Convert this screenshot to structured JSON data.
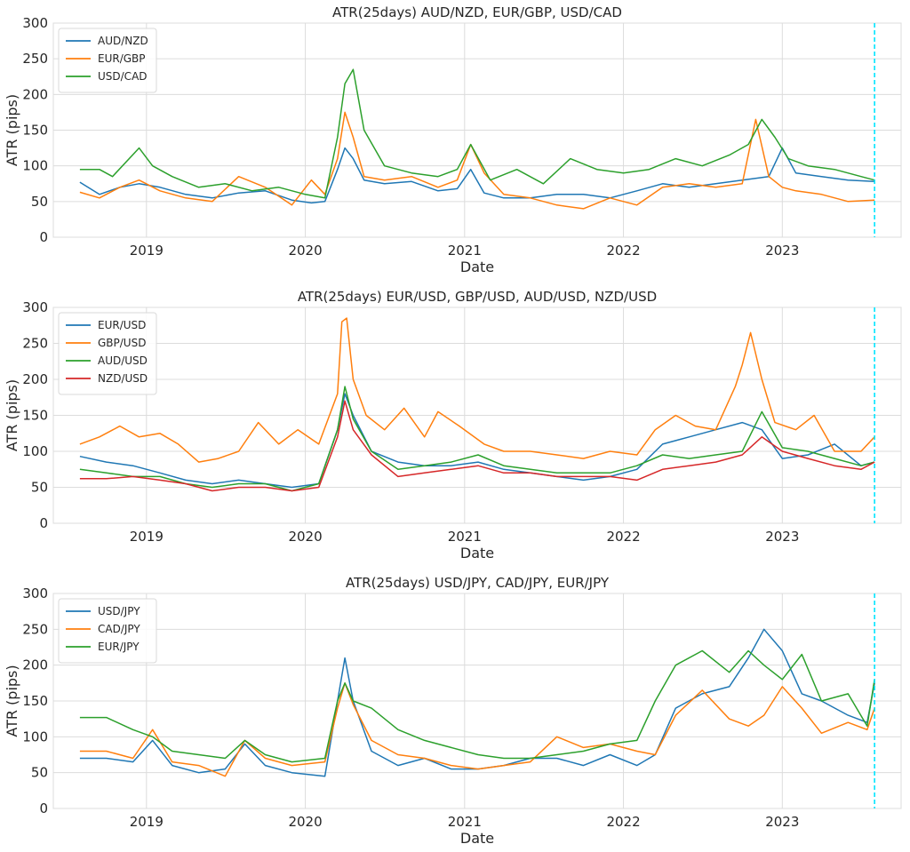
{
  "figure": {
    "vline_date": "2023-08-01",
    "vline_color": "#00e5ff"
  },
  "chart_data": [
    {
      "type": "line",
      "title": "ATR(25days)  AUD/NZD, EUR/GBP, USD/CAD",
      "xlabel": "Date",
      "ylabel": "ATR (pips)",
      "ylim": [
        0,
        300
      ],
      "yticks": [
        "0",
        "50",
        "100",
        "150",
        "200",
        "250",
        "300"
      ],
      "xticks": [
        "2019",
        "2020",
        "2021",
        "2022",
        "2023"
      ],
      "xlim": [
        "2018-06-01",
        "2023-10-01"
      ],
      "grid": true,
      "legend_position": "top-left",
      "series": [
        {
          "name": "AUD/NZD",
          "color": "#1f77b4",
          "x": [
            "2018-08-01",
            "2018-09-15",
            "2018-11-01",
            "2018-12-15",
            "2019-02-01",
            "2019-04-01",
            "2019-06-01",
            "2019-08-01",
            "2019-10-01",
            "2019-12-01",
            "2020-01-15",
            "2020-02-15",
            "2020-03-15",
            "2020-04-01",
            "2020-04-20",
            "2020-05-15",
            "2020-07-01",
            "2020-09-01",
            "2020-11-01",
            "2020-12-15",
            "2021-01-15",
            "2021-02-15",
            "2021-04-01",
            "2021-06-01",
            "2021-08-01",
            "2021-10-01",
            "2021-12-01",
            "2022-02-01",
            "2022-04-01",
            "2022-06-01",
            "2022-08-01",
            "2022-10-01",
            "2022-12-01",
            "2023-01-01",
            "2023-02-01",
            "2023-04-01",
            "2023-06-01",
            "2023-08-01"
          ],
          "values": [
            77,
            60,
            70,
            75,
            70,
            60,
            55,
            62,
            65,
            52,
            48,
            50,
            95,
            125,
            110,
            80,
            75,
            78,
            65,
            68,
            95,
            62,
            55,
            55,
            60,
            60,
            55,
            65,
            75,
            70,
            75,
            80,
            85,
            125,
            90,
            85,
            80,
            78
          ]
        },
        {
          "name": "EUR/GBP",
          "color": "#ff7f0e",
          "x": [
            "2018-08-01",
            "2018-09-15",
            "2018-11-01",
            "2018-12-15",
            "2019-02-01",
            "2019-04-01",
            "2019-06-01",
            "2019-08-01",
            "2019-10-01",
            "2019-12-01",
            "2020-01-15",
            "2020-02-15",
            "2020-03-15",
            "2020-04-01",
            "2020-04-20",
            "2020-05-15",
            "2020-07-01",
            "2020-09-01",
            "2020-11-01",
            "2020-12-15",
            "2021-01-15",
            "2021-02-15",
            "2021-04-01",
            "2021-06-01",
            "2021-08-01",
            "2021-10-01",
            "2021-12-01",
            "2022-02-01",
            "2022-04-01",
            "2022-06-01",
            "2022-08-01",
            "2022-10-01",
            "2022-11-01",
            "2022-12-01",
            "2023-01-01",
            "2023-02-01",
            "2023-04-01",
            "2023-06-01",
            "2023-08-01"
          ],
          "values": [
            63,
            55,
            70,
            80,
            65,
            55,
            50,
            85,
            70,
            45,
            80,
            60,
            110,
            175,
            140,
            85,
            80,
            85,
            70,
            80,
            130,
            90,
            60,
            55,
            45,
            40,
            55,
            45,
            70,
            75,
            70,
            75,
            165,
            85,
            70,
            65,
            60,
            50,
            52
          ]
        },
        {
          "name": "USD/CAD",
          "color": "#2ca02c",
          "x": [
            "2018-08-01",
            "2018-09-15",
            "2018-10-15",
            "2018-12-15",
            "2019-01-15",
            "2019-03-01",
            "2019-05-01",
            "2019-07-01",
            "2019-09-01",
            "2019-11-01",
            "2020-01-01",
            "2020-02-15",
            "2020-03-15",
            "2020-04-01",
            "2020-04-20",
            "2020-05-15",
            "2020-07-01",
            "2020-09-01",
            "2020-11-01",
            "2020-12-15",
            "2021-01-15",
            "2021-03-01",
            "2021-05-01",
            "2021-07-01",
            "2021-09-01",
            "2021-11-01",
            "2022-01-01",
            "2022-03-01",
            "2022-05-01",
            "2022-07-01",
            "2022-09-01",
            "2022-10-15",
            "2022-11-15",
            "2022-12-15",
            "2023-01-15",
            "2023-03-01",
            "2023-05-01",
            "2023-07-01",
            "2023-08-01"
          ],
          "values": [
            95,
            95,
            85,
            125,
            100,
            85,
            70,
            75,
            65,
            70,
            60,
            55,
            140,
            215,
            235,
            150,
            100,
            90,
            85,
            95,
            130,
            80,
            95,
            75,
            110,
            95,
            90,
            95,
            110,
            100,
            115,
            130,
            165,
            140,
            110,
            100,
            95,
            85,
            80
          ]
        }
      ]
    },
    {
      "type": "line",
      "title": "ATR(25days) EUR/USD, GBP/USD, AUD/USD, NZD/USD",
      "xlabel": "Date",
      "ylabel": "ATR (pips)",
      "ylim": [
        0,
        300
      ],
      "yticks": [
        "0",
        "50",
        "100",
        "150",
        "200",
        "250",
        "300"
      ],
      "xticks": [
        "2019",
        "2020",
        "2021",
        "2022",
        "2023"
      ],
      "xlim": [
        "2018-06-01",
        "2023-10-01"
      ],
      "grid": true,
      "legend_position": "top-left",
      "series": [
        {
          "name": "EUR/USD",
          "color": "#1f77b4",
          "x": [
            "2018-08-01",
            "2018-10-01",
            "2018-12-01",
            "2019-02-01",
            "2019-04-01",
            "2019-06-01",
            "2019-08-01",
            "2019-10-01",
            "2019-12-01",
            "2020-02-01",
            "2020-03-15",
            "2020-04-01",
            "2020-04-20",
            "2020-06-01",
            "2020-08-01",
            "2020-10-01",
            "2020-12-01",
            "2021-02-01",
            "2021-04-01",
            "2021-06-01",
            "2021-08-01",
            "2021-10-01",
            "2021-12-01",
            "2022-02-01",
            "2022-04-01",
            "2022-06-01",
            "2022-08-01",
            "2022-10-01",
            "2022-11-15",
            "2023-01-01",
            "2023-03-01",
            "2023-05-01",
            "2023-07-01",
            "2023-08-01"
          ],
          "values": [
            93,
            85,
            80,
            70,
            60,
            55,
            60,
            55,
            50,
            55,
            130,
            180,
            150,
            100,
            85,
            80,
            80,
            85,
            75,
            70,
            65,
            60,
            65,
            75,
            110,
            120,
            130,
            140,
            130,
            90,
            95,
            110,
            80,
            85
          ]
        },
        {
          "name": "GBP/USD",
          "color": "#ff7f0e",
          "x": [
            "2018-08-01",
            "2018-09-15",
            "2018-11-01",
            "2018-12-15",
            "2019-02-01",
            "2019-03-15",
            "2019-05-01",
            "2019-06-15",
            "2019-08-01",
            "2019-09-15",
            "2019-11-01",
            "2019-12-15",
            "2020-02-01",
            "2020-03-15",
            "2020-03-25",
            "2020-04-05",
            "2020-04-20",
            "2020-05-20",
            "2020-07-01",
            "2020-08-15",
            "2020-10-01",
            "2020-11-01",
            "2020-12-20",
            "2021-02-15",
            "2021-04-01",
            "2021-06-01",
            "2021-08-01",
            "2021-10-01",
            "2021-12-01",
            "2022-02-01",
            "2022-03-15",
            "2022-05-01",
            "2022-06-15",
            "2022-08-01",
            "2022-09-15",
            "2022-10-01",
            "2022-10-20",
            "2022-11-15",
            "2022-12-15",
            "2023-02-01",
            "2023-03-15",
            "2023-05-01",
            "2023-07-01",
            "2023-08-01"
          ],
          "values": [
            110,
            120,
            135,
            120,
            125,
            110,
            85,
            90,
            100,
            140,
            110,
            130,
            110,
            180,
            280,
            285,
            200,
            150,
            130,
            160,
            120,
            155,
            135,
            110,
            100,
            100,
            95,
            90,
            100,
            95,
            130,
            150,
            135,
            130,
            190,
            220,
            265,
            200,
            140,
            130,
            150,
            100,
            100,
            120
          ]
        },
        {
          "name": "AUD/USD",
          "color": "#2ca02c",
          "x": [
            "2018-08-01",
            "2018-10-01",
            "2018-12-01",
            "2019-02-01",
            "2019-04-01",
            "2019-06-01",
            "2019-08-01",
            "2019-10-01",
            "2019-12-01",
            "2020-02-01",
            "2020-03-15",
            "2020-04-01",
            "2020-04-20",
            "2020-06-01",
            "2020-08-01",
            "2020-10-01",
            "2020-12-01",
            "2021-02-01",
            "2021-04-01",
            "2021-06-01",
            "2021-08-01",
            "2021-10-01",
            "2021-12-01",
            "2022-02-01",
            "2022-04-01",
            "2022-06-01",
            "2022-08-01",
            "2022-10-01",
            "2022-11-15",
            "2023-01-01",
            "2023-03-01",
            "2023-05-01",
            "2023-07-01",
            "2023-08-01"
          ],
          "values": [
            75,
            70,
            65,
            65,
            55,
            50,
            55,
            55,
            45,
            55,
            130,
            190,
            145,
            100,
            75,
            80,
            85,
            95,
            80,
            75,
            70,
            70,
            70,
            80,
            95,
            90,
            95,
            100,
            155,
            105,
            100,
            90,
            80,
            85
          ]
        },
        {
          "name": "NZD/USD",
          "color": "#d62728",
          "x": [
            "2018-08-01",
            "2018-10-01",
            "2018-12-01",
            "2019-02-01",
            "2019-04-01",
            "2019-06-01",
            "2019-08-01",
            "2019-10-01",
            "2019-12-01",
            "2020-02-01",
            "2020-03-15",
            "2020-04-01",
            "2020-04-20",
            "2020-06-01",
            "2020-08-01",
            "2020-10-01",
            "2020-12-01",
            "2021-02-01",
            "2021-04-01",
            "2021-06-01",
            "2021-08-01",
            "2021-10-01",
            "2021-12-01",
            "2022-02-01",
            "2022-04-01",
            "2022-06-01",
            "2022-08-01",
            "2022-10-01",
            "2022-11-15",
            "2023-01-01",
            "2023-03-01",
            "2023-05-01",
            "2023-07-01",
            "2023-08-01"
          ],
          "values": [
            62,
            62,
            65,
            60,
            55,
            45,
            50,
            50,
            45,
            50,
            120,
            170,
            130,
            95,
            65,
            70,
            75,
            80,
            70,
            70,
            65,
            65,
            65,
            60,
            75,
            80,
            85,
            95,
            120,
            100,
            90,
            80,
            75,
            85
          ]
        }
      ]
    },
    {
      "type": "line",
      "title": "ATR(25days) USD/JPY, CAD/JPY, EUR/JPY",
      "xlabel": "Date",
      "ylabel": "ATR (pips)",
      "ylim": [
        0,
        300
      ],
      "yticks": [
        "0",
        "50",
        "100",
        "150",
        "200",
        "250",
        "300"
      ],
      "xticks": [
        "2019",
        "2020",
        "2021",
        "2022",
        "2023"
      ],
      "xlim": [
        "2018-06-01",
        "2023-10-01"
      ],
      "grid": true,
      "legend_position": "top-left",
      "series": [
        {
          "name": "USD/JPY",
          "color": "#1f77b4",
          "x": [
            "2018-08-01",
            "2018-10-01",
            "2018-12-01",
            "2019-01-15",
            "2019-03-01",
            "2019-05-01",
            "2019-07-01",
            "2019-08-15",
            "2019-10-01",
            "2019-12-01",
            "2020-02-15",
            "2020-03-15",
            "2020-04-01",
            "2020-04-20",
            "2020-06-01",
            "2020-08-01",
            "2020-10-01",
            "2020-12-01",
            "2021-02-01",
            "2021-04-01",
            "2021-06-01",
            "2021-08-01",
            "2021-10-01",
            "2021-12-01",
            "2022-02-01",
            "2022-03-15",
            "2022-05-01",
            "2022-07-01",
            "2022-09-01",
            "2022-10-15",
            "2022-11-20",
            "2023-01-01",
            "2023-02-15",
            "2023-04-01",
            "2023-06-01",
            "2023-07-15",
            "2023-08-01"
          ],
          "values": [
            70,
            70,
            65,
            95,
            60,
            50,
            55,
            90,
            60,
            50,
            45,
            150,
            210,
            150,
            80,
            60,
            70,
            55,
            55,
            60,
            70,
            70,
            60,
            75,
            60,
            75,
            140,
            160,
            170,
            210,
            250,
            220,
            160,
            150,
            130,
            120,
            175
          ]
        },
        {
          "name": "CAD/JPY",
          "color": "#ff7f0e",
          "x": [
            "2018-08-01",
            "2018-10-01",
            "2018-12-01",
            "2019-01-15",
            "2019-03-01",
            "2019-05-01",
            "2019-07-01",
            "2019-08-15",
            "2019-10-01",
            "2019-12-01",
            "2020-02-15",
            "2020-03-15",
            "2020-04-01",
            "2020-04-20",
            "2020-06-01",
            "2020-08-01",
            "2020-10-01",
            "2020-12-01",
            "2021-02-01",
            "2021-04-01",
            "2021-06-01",
            "2021-08-01",
            "2021-10-01",
            "2021-12-01",
            "2022-02-01",
            "2022-03-15",
            "2022-05-01",
            "2022-07-01",
            "2022-09-01",
            "2022-10-15",
            "2022-11-20",
            "2023-01-01",
            "2023-02-15",
            "2023-04-01",
            "2023-06-01",
            "2023-07-15",
            "2023-08-01"
          ],
          "values": [
            80,
            80,
            70,
            110,
            65,
            60,
            45,
            95,
            70,
            60,
            65,
            140,
            175,
            145,
            95,
            75,
            70,
            60,
            55,
            60,
            65,
            100,
            85,
            90,
            80,
            75,
            130,
            165,
            125,
            115,
            130,
            170,
            140,
            105,
            120,
            110,
            140
          ]
        },
        {
          "name": "EUR/JPY",
          "color": "#2ca02c",
          "x": [
            "2018-08-01",
            "2018-10-01",
            "2018-12-01",
            "2019-01-15",
            "2019-03-01",
            "2019-05-01",
            "2019-07-01",
            "2019-08-15",
            "2019-10-01",
            "2019-12-01",
            "2020-02-15",
            "2020-03-15",
            "2020-04-01",
            "2020-04-20",
            "2020-06-01",
            "2020-08-01",
            "2020-10-01",
            "2020-12-01",
            "2021-02-01",
            "2021-04-01",
            "2021-06-01",
            "2021-08-01",
            "2021-10-01",
            "2021-12-01",
            "2022-02-01",
            "2022-03-15",
            "2022-05-01",
            "2022-07-01",
            "2022-09-01",
            "2022-10-15",
            "2022-11-20",
            "2023-01-01",
            "2023-02-15",
            "2023-04-01",
            "2023-06-01",
            "2023-07-15",
            "2023-08-01"
          ],
          "values": [
            127,
            127,
            110,
            100,
            80,
            75,
            70,
            95,
            75,
            65,
            70,
            150,
            175,
            150,
            140,
            110,
            95,
            85,
            75,
            70,
            70,
            75,
            80,
            90,
            95,
            150,
            200,
            220,
            190,
            220,
            200,
            180,
            215,
            150,
            160,
            115,
            180
          ]
        }
      ]
    }
  ]
}
